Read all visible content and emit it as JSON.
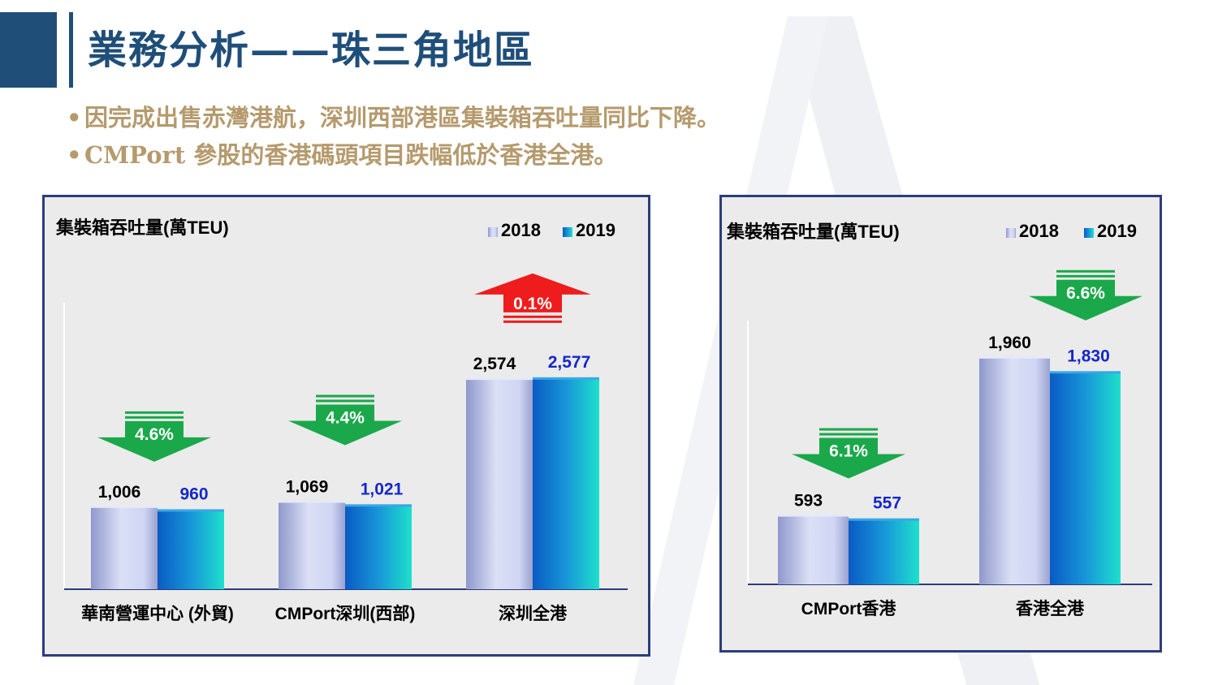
{
  "slide": {
    "title": "業務分析——珠三角地區",
    "bullets": [
      "因完成出售赤灣港航，深圳西部港區集裝箱吞吐量同比下降。",
      "CMPort 參股的香港碼頭項目跌幅低於香港全港。"
    ]
  },
  "colors": {
    "brand": "#1f4e79",
    "bullet_text": "#b59a6d",
    "panel_border": "#2b3d7c",
    "series_2018": "#c2c9ef",
    "series_2019": "#1a8fd8",
    "label_2019": "#1428c8",
    "decrease_arrow": "#1aa84a",
    "increase_arrow": "#ee1c1c"
  },
  "chart_data": [
    {
      "type": "bar",
      "title": "集裝箱吞吐量(萬TEU)",
      "categories": [
        "華南營運中心 (外貿)",
        "CMPort深圳(西部)",
        "深圳全港"
      ],
      "series": [
        {
          "name": "2018",
          "values": [
            1006,
            1069,
            2574
          ],
          "labels": [
            "1,006",
            "1,069",
            "2,574"
          ]
        },
        {
          "name": "2019",
          "values": [
            960,
            1021,
            2577
          ],
          "labels": [
            "960",
            "1,021",
            "2,577"
          ]
        }
      ],
      "changes": [
        {
          "label": "4.6%",
          "direction": "down"
        },
        {
          "label": "4.4%",
          "direction": "down"
        },
        {
          "label": "0.1%",
          "direction": "up"
        }
      ],
      "legend": "top-right",
      "ylim": [
        0,
        3500
      ]
    },
    {
      "type": "bar",
      "title": "集裝箱吞吐量(萬TEU)",
      "categories": [
        "CMPort香港",
        "香港全港"
      ],
      "series": [
        {
          "name": "2018",
          "values": [
            593,
            1960
          ],
          "labels": [
            "593",
            "1,960"
          ]
        },
        {
          "name": "2019",
          "values": [
            557,
            1830
          ],
          "labels": [
            "557",
            "1,830"
          ]
        }
      ],
      "changes": [
        {
          "label": "6.1%",
          "direction": "down"
        },
        {
          "label": "6.6%",
          "direction": "down"
        }
      ],
      "legend": "top-right",
      "ylim": [
        0,
        2450
      ]
    }
  ]
}
